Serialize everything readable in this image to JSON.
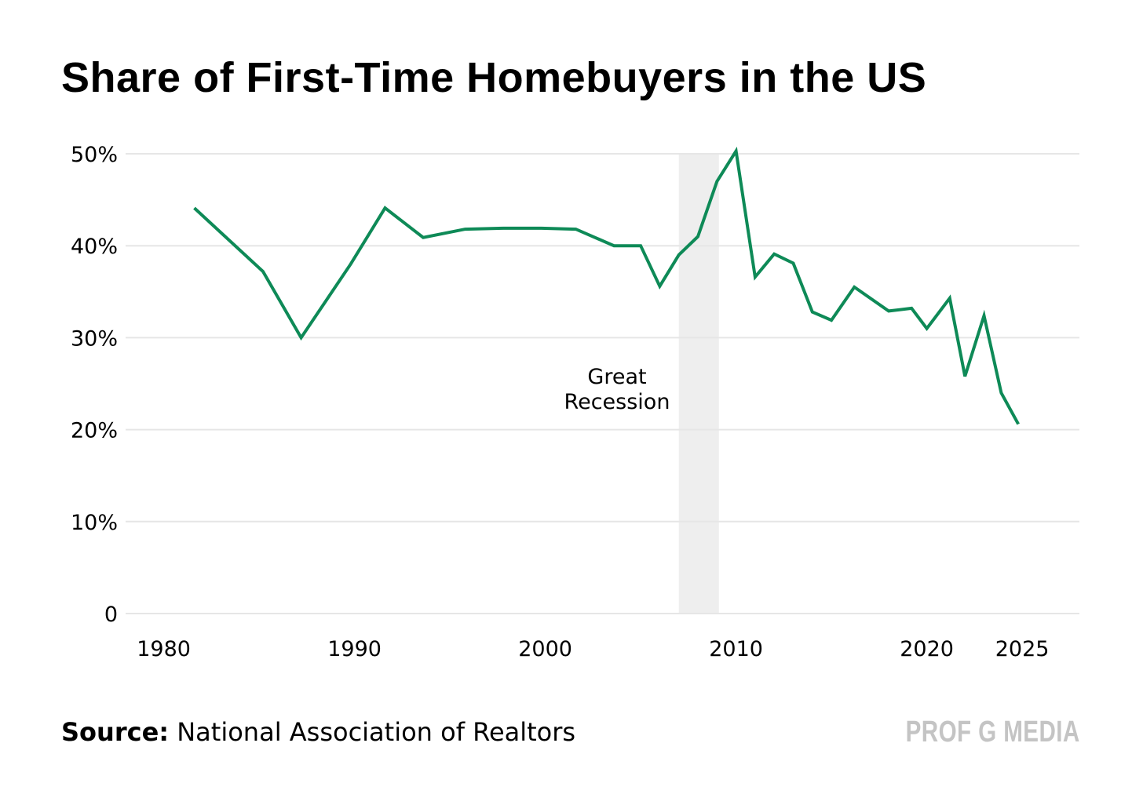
{
  "chart_data": {
    "type": "line",
    "title": "Share of First-Time Homebuyers in the US",
    "xlabel": "",
    "ylabel": "",
    "xlim": [
      1978,
      2028
    ],
    "ylim": [
      0,
      50
    ],
    "x_ticks": [
      1980,
      1990,
      2000,
      2010,
      2020,
      2025
    ],
    "y_ticks": [
      {
        "value": 0,
        "label": "0"
      },
      {
        "value": 10,
        "label": "10%"
      },
      {
        "value": 20,
        "label": "20%"
      },
      {
        "value": 30,
        "label": "30%"
      },
      {
        "value": 40,
        "label": "40%"
      },
      {
        "value": 50,
        "label": "50%"
      }
    ],
    "grid": "horizontal",
    "series": [
      {
        "color": "#0e8a57",
        "points": [
          [
            1981.6,
            44.1
          ],
          [
            1985.2,
            37.2
          ],
          [
            1987.2,
            30.0
          ],
          [
            1989.8,
            38.0
          ],
          [
            1991.6,
            44.1
          ],
          [
            1993.6,
            40.9
          ],
          [
            1995.8,
            41.8
          ],
          [
            1997.8,
            41.9
          ],
          [
            1999.8,
            41.9
          ],
          [
            2001.6,
            41.8
          ],
          [
            2003.6,
            40.0
          ],
          [
            2005.0,
            40.0
          ],
          [
            2006.0,
            35.6
          ],
          [
            2007.0,
            39.0
          ],
          [
            2008.0,
            41.0
          ],
          [
            2009.0,
            47.0
          ],
          [
            2010.0,
            50.3
          ],
          [
            2011.0,
            36.6
          ],
          [
            2012.0,
            39.1
          ],
          [
            2013.0,
            38.1
          ],
          [
            2014.0,
            32.8
          ],
          [
            2015.0,
            31.9
          ],
          [
            2016.2,
            35.5
          ],
          [
            2018.0,
            32.9
          ],
          [
            2019.2,
            33.2
          ],
          [
            2020.0,
            31.0
          ],
          [
            2021.2,
            34.3
          ],
          [
            2022.0,
            25.8
          ],
          [
            2023.0,
            32.4
          ],
          [
            2023.9,
            24.0
          ],
          [
            2024.8,
            20.6
          ]
        ]
      }
    ],
    "shaded_regions": [
      {
        "x_start": 2007.0,
        "x_end": 2009.1,
        "color": "#eeeeee",
        "label": "Great Recession"
      }
    ]
  },
  "annotation": {
    "line1": "Great",
    "line2": "Recession"
  },
  "source": {
    "label": "Source:",
    "text": "National Association of Realtors"
  },
  "brand": "PROF G MEDIA",
  "colors": {
    "line": "#0e8a57",
    "grid": "#e6e6e6",
    "shade": "#eeeeee",
    "brand": "#c4c4c4"
  }
}
